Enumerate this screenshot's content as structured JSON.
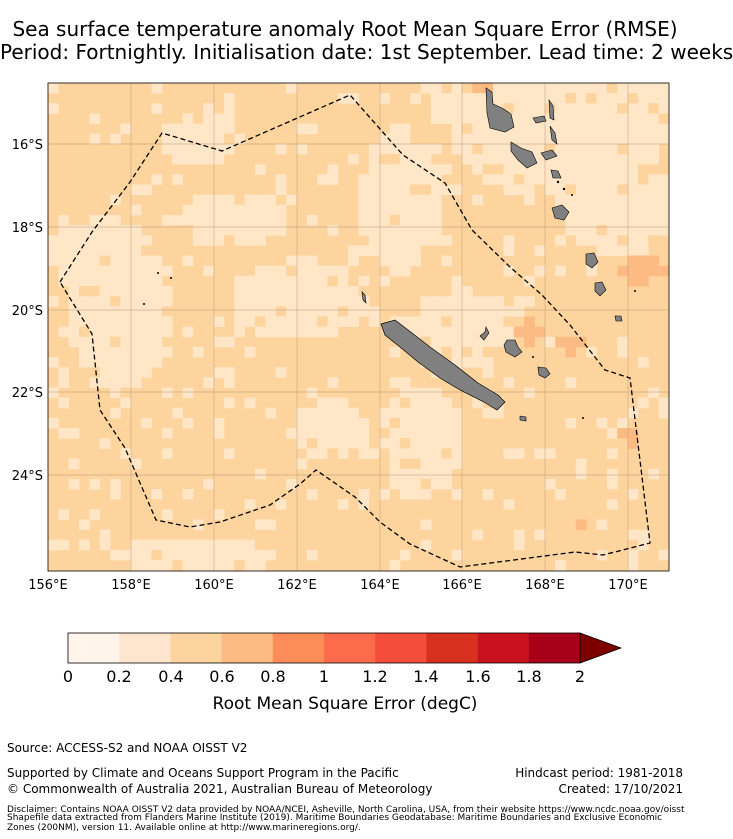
{
  "title": {
    "line1": "Sea surface temperature anomaly Root Mean Square Error (RMSE)",
    "line2": "Period: Fortnightly. Initialisation date: 1st September. Lead time: 2 weeks"
  },
  "map": {
    "lon_range": [
      156,
      171
    ],
    "lat_range": [
      -26.3,
      -14.5
    ],
    "lon_ticks": [
      "156°E",
      "158°E",
      "160°E",
      "162°E",
      "164°E",
      "166°E",
      "168°E",
      "170°E"
    ],
    "lat_ticks": [
      "16°S",
      "18°S",
      "20°S",
      "22°S",
      "24°S"
    ],
    "colors": {
      "c0": "#fff5e6",
      "c1": "#fee6c6",
      "c2": "#fdd49e",
      "c3": "#fdbb84",
      "c4": "#fc8d59",
      "land": "#808080",
      "grid": "#b09070"
    }
  },
  "colorbar": {
    "ticks": [
      "0",
      "0.2",
      "0.4",
      "0.6",
      "0.8",
      "1",
      "1.2",
      "1.4",
      "1.6",
      "1.8",
      "2"
    ],
    "colors": [
      "#fff5eb",
      "#fee6ce",
      "#fdd49e",
      "#fdbb84",
      "#fc8d59",
      "#fc6c4c",
      "#f44d3b",
      "#d7301f",
      "#c9121d",
      "#a80018",
      "#7f0000"
    ],
    "label": "Root Mean Square Error (degC)"
  },
  "footer": {
    "source": "Source: ACCESS-S2 and NOAA OISST V2",
    "supported": "Supported by Climate and Oceans Support Program in the Pacific",
    "copyright": "© Commonwealth of Australia 2021, Australian Bureau of Meteorology",
    "hindcast": "Hindcast period: 1981-2018",
    "created": "Created: 17/10/2021",
    "disclaimer1": "Disclaimer: Contains NOAA OISST V2 data provided by NOAA/NCEI, Asheville, North Carolina, USA, from their website https://www.ncdc.noaa.gov/oisst",
    "disclaimer2": "Shapefile data extracted from Flanders Marine Institute (2019). Maritime Boundaries Geodatabase: Maritime Boundaries and Exclusive Economic",
    "disclaimer3": "Zones (200NM), version 11. Available online at http://www.marineregions.org/."
  }
}
